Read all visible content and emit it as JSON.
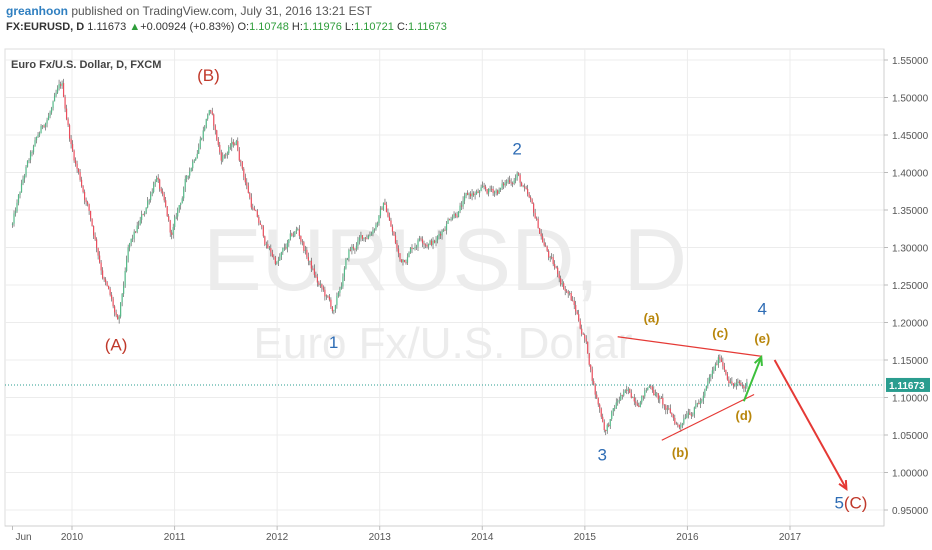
{
  "header": {
    "user": "greanhoon",
    "published": " published on TradingView.com, July 31, 2016 13:21 EST",
    "symbol": "FX:EURUSD, D",
    "last": "1.11673",
    "change_arrow": "▲",
    "change": "+0.00924 (+0.83%)",
    "open_label": "O:",
    "open": "1.10748",
    "high_label": "H:",
    "high": "1.11976",
    "low_label": "L:",
    "low": "1.10721",
    "close_label": "C:",
    "close": "1.11673"
  },
  "chart_data": {
    "type": "line",
    "subtype": "candlestick",
    "title": "Euro Fx/U.S. Dollar, D, FXCM",
    "watermark_symbol": "EURUSD, D",
    "watermark_name": "Euro Fx/U.S. Dollar",
    "ylim": [
      0.93,
      1.57
    ],
    "xlim": [
      2009.42,
      2017.77
    ],
    "y_ticks": [
      "1.55000",
      "1.50000",
      "1.45000",
      "1.40000",
      "1.35000",
      "1.30000",
      "1.25000",
      "1.20000",
      "1.15000",
      "1.10000",
      "1.05000",
      "1.00000",
      "0.95000"
    ],
    "y_tick_values": [
      1.55,
      1.5,
      1.45,
      1.4,
      1.35,
      1.3,
      1.25,
      1.2,
      1.15,
      1.1,
      1.05,
      1.0,
      0.95
    ],
    "x_ticks": [
      "Jun",
      "2010",
      "2011",
      "2012",
      "2013",
      "2014",
      "2015",
      "2016",
      "2017"
    ],
    "x_tick_values": [
      2009.42,
      2010.0,
      2011.0,
      2012.0,
      2013.0,
      2014.0,
      2015.0,
      2016.0,
      2017.0
    ],
    "last_price": 1.11673,
    "last_price_label": "1.11673",
    "price_path": [
      [
        2009.42,
        1.33
      ],
      [
        2009.55,
        1.4
      ],
      [
        2009.75,
        1.47
      ],
      [
        2009.9,
        1.51
      ],
      [
        2010.0,
        1.43
      ],
      [
        2010.15,
        1.36
      ],
      [
        2010.3,
        1.27
      ],
      [
        2010.4,
        1.22
      ],
      [
        2010.45,
        1.19
      ],
      [
        2010.55,
        1.29
      ],
      [
        2010.7,
        1.34
      ],
      [
        2010.82,
        1.4
      ],
      [
        2010.97,
        1.31
      ],
      [
        2011.1,
        1.38
      ],
      [
        2011.25,
        1.45
      ],
      [
        2011.34,
        1.49
      ],
      [
        2011.45,
        1.42
      ],
      [
        2011.6,
        1.44
      ],
      [
        2011.75,
        1.36
      ],
      [
        2011.9,
        1.3
      ],
      [
        2012.0,
        1.28
      ],
      [
        2012.2,
        1.32
      ],
      [
        2012.4,
        1.25
      ],
      [
        2012.56,
        1.21
      ],
      [
        2012.7,
        1.29
      ],
      [
        2012.9,
        1.32
      ],
      [
        2013.05,
        1.36
      ],
      [
        2013.2,
        1.28
      ],
      [
        2013.4,
        1.32
      ],
      [
        2013.55,
        1.31
      ],
      [
        2013.7,
        1.35
      ],
      [
        2013.9,
        1.37
      ],
      [
        2014.05,
        1.37
      ],
      [
        2014.2,
        1.38
      ],
      [
        2014.34,
        1.4
      ],
      [
        2014.5,
        1.34
      ],
      [
        2014.7,
        1.27
      ],
      [
        2014.85,
        1.24
      ],
      [
        2015.0,
        1.18
      ],
      [
        2015.1,
        1.11
      ],
      [
        2015.2,
        1.06
      ],
      [
        2015.35,
        1.1
      ],
      [
        2015.5,
        1.1
      ],
      [
        2015.65,
        1.12
      ],
      [
        2015.8,
        1.08
      ],
      [
        2015.92,
        1.06
      ],
      [
        2016.0,
        1.09
      ],
      [
        2016.15,
        1.1
      ],
      [
        2016.32,
        1.15
      ],
      [
        2016.45,
        1.12
      ],
      [
        2016.55,
        1.11
      ],
      [
        2016.58,
        1.11673
      ]
    ],
    "annotations": [
      {
        "text": "(A)",
        "x": 2010.43,
        "y": 1.163,
        "color": "#c0392b"
      },
      {
        "text": "(B)",
        "x": 2011.33,
        "y": 1.522,
        "color": "#c0392b"
      },
      {
        "text": "1",
        "x": 2012.55,
        "y": 1.166,
        "color": "#2f6db5"
      },
      {
        "text": "2",
        "x": 2014.34,
        "y": 1.424,
        "color": "#2f6db5"
      },
      {
        "text": "3",
        "x": 2015.17,
        "y": 1.016,
        "color": "#2f6db5"
      },
      {
        "text": "(a)",
        "x": 2015.65,
        "y": 1.2,
        "color": "#b8860b"
      },
      {
        "text": "(b)",
        "x": 2015.93,
        "y": 1.021,
        "color": "#b8860b"
      },
      {
        "text": "(c)",
        "x": 2016.32,
        "y": 1.18,
        "color": "#b8860b"
      },
      {
        "text": "(d)",
        "x": 2016.55,
        "y": 1.07,
        "color": "#b8860b"
      },
      {
        "text": "(e)",
        "x": 2016.73,
        "y": 1.173,
        "color": "#b8860b"
      },
      {
        "text": "4",
        "x": 2016.73,
        "y": 1.211,
        "color": "#2f6db5"
      },
      {
        "text": "5",
        "x": 2017.48,
        "y": 0.952,
        "color": "#2f6db5"
      },
      {
        "text": "(C)",
        "x": 2017.64,
        "y": 0.952,
        "color": "#c0392b"
      }
    ],
    "trendlines": [
      {
        "x1": 2015.32,
        "y1": 1.181,
        "x2": 2016.72,
        "y2": 1.155,
        "color": "#e53935"
      },
      {
        "x1": 2015.75,
        "y1": 1.043,
        "x2": 2016.65,
        "y2": 1.104,
        "color": "#e53935"
      }
    ],
    "arrows": [
      {
        "x1": 2016.55,
        "y1": 1.095,
        "x2": 2016.72,
        "y2": 1.154,
        "color": "#3cc03c"
      },
      {
        "x1": 2016.85,
        "y1": 1.15,
        "x2": 2017.55,
        "y2": 0.978,
        "color": "#e53935"
      }
    ]
  }
}
